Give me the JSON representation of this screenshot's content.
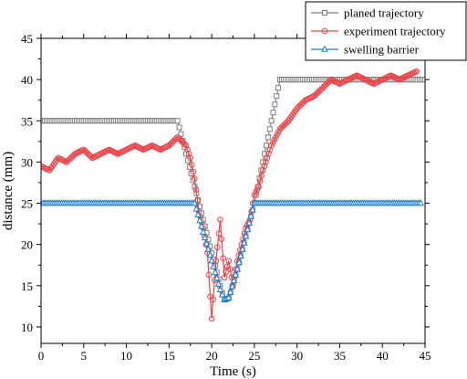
{
  "chart_data": {
    "type": "line",
    "xlabel": "Time (s)",
    "ylabel": "distance (mm)",
    "xlim": [
      0,
      45
    ],
    "ylim": [
      8,
      45
    ],
    "xticks": [
      0,
      5,
      10,
      15,
      20,
      25,
      30,
      35,
      40,
      45
    ],
    "yticks": [
      10,
      15,
      20,
      25,
      30,
      35,
      40,
      45
    ],
    "grid": false,
    "legend_position": "top-right",
    "colors": {
      "planned": "#808080",
      "experiment": "#e8464b",
      "barrier": "#1e78d2"
    },
    "series": [
      {
        "name": "planed trajectory",
        "marker": "square",
        "x": [
          0,
          16,
          17,
          18,
          19,
          20,
          21,
          21.5,
          22,
          23,
          24,
          25,
          26,
          27,
          28,
          45
        ],
        "y": [
          35,
          35,
          31,
          27,
          23,
          19,
          15,
          13.3,
          13.5,
          17,
          21,
          25,
          30,
          35,
          40,
          40
        ]
      },
      {
        "name": "experiment trajectory",
        "marker": "circle",
        "x": [
          0,
          1,
          2,
          3,
          4,
          5,
          6,
          7,
          8,
          9,
          10,
          11,
          12,
          13,
          14,
          15,
          16,
          17,
          17.5,
          18,
          18.5,
          19,
          19.5,
          20,
          20.5,
          21,
          21.5,
          22,
          22.5,
          23,
          23.5,
          24,
          24.5,
          25,
          25.5,
          26,
          27,
          28,
          29,
          30,
          31,
          32,
          33,
          34,
          35,
          36,
          37,
          38,
          39,
          40,
          41,
          42,
          43,
          44
        ],
        "y": [
          29.5,
          29,
          30.5,
          30,
          31,
          31.5,
          30.5,
          31,
          31.5,
          31,
          31.5,
          32,
          31.5,
          32,
          31.5,
          32,
          33,
          32,
          30.5,
          28,
          24,
          22,
          19,
          11,
          18,
          23,
          16,
          18,
          15,
          18,
          20,
          22,
          23,
          26,
          27,
          29,
          32,
          34,
          35,
          36.5,
          37.5,
          38,
          39,
          40,
          39.5,
          40,
          40.5,
          40,
          39.5,
          40,
          40.5,
          40,
          40.5,
          41
        ]
      },
      {
        "name": "swelling barrier",
        "marker": "triangle",
        "x": [
          0,
          18,
          19,
          20,
          21,
          21.5,
          22,
          23,
          24,
          25,
          44.5
        ],
        "y": [
          25,
          25,
          21.5,
          18,
          14.5,
          13.3,
          13.5,
          17,
          21,
          25,
          25
        ]
      }
    ]
  }
}
